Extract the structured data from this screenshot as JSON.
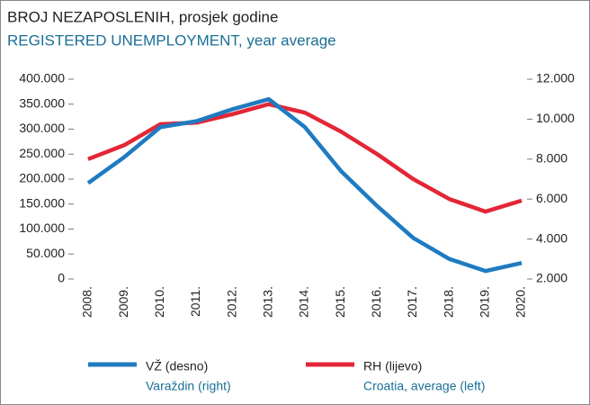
{
  "chart_data": {
    "type": "line",
    "title": "BROJ NEZAPOSLENIH, prosjek godine",
    "subtitle": "REGISTERED UNEMPLOYMENT, year average",
    "categories": [
      "2008.",
      "2009.",
      "2010.",
      "2011.",
      "2012.",
      "2013.",
      "2014.",
      "2015.",
      "2016.",
      "2017.",
      "2018.",
      "2019.",
      "2020."
    ],
    "ylim": [
      0,
      400000
    ],
    "yticks": [
      {
        "value": 0,
        "label": "0"
      },
      {
        "value": 50000,
        "label": "50.000"
      },
      {
        "value": 100000,
        "label": "100.000"
      },
      {
        "value": 150000,
        "label": "150.000"
      },
      {
        "value": 200000,
        "label": "200.000"
      },
      {
        "value": 250000,
        "label": "250.000"
      },
      {
        "value": 300000,
        "label": "300.000"
      },
      {
        "value": 350000,
        "label": "350.000"
      },
      {
        "value": 400000,
        "label": "400.000"
      }
    ],
    "y2lim": [
      2000,
      12000
    ],
    "y2ticks": [
      {
        "value": 2000,
        "label": "2.000"
      },
      {
        "value": 4000,
        "label": "4.000"
      },
      {
        "value": 6000,
        "label": "6.000"
      },
      {
        "value": 8000,
        "label": "8.000"
      },
      {
        "value": 10000,
        "label": "10.000"
      },
      {
        "value": 12000,
        "label": "12.000"
      }
    ],
    "series": [
      {
        "name": "VŽ (desno)",
        "subname": "Varaždin (right)",
        "color": "#1f7bc1",
        "axis": "y2",
        "values": [
          6800,
          8100,
          9600,
          9900,
          10500,
          11000,
          9600,
          7400,
          5650,
          4050,
          3000,
          2400,
          2800
        ]
      },
      {
        "name": "RH (lijevo)",
        "subname": "Croatia, average (left)",
        "color": "#e32636",
        "values": [
          240000,
          268000,
          310000,
          313000,
          330000,
          350000,
          333000,
          295000,
          250000,
          200000,
          160000,
          135000,
          157000
        ]
      }
    ]
  }
}
